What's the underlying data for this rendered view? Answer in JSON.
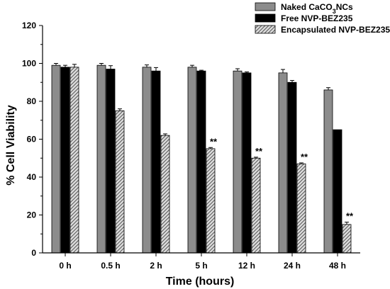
{
  "chart_data": {
    "type": "bar",
    "categories": [
      "0 h",
      "0.5 h",
      "2 h",
      "5 h",
      "12 h",
      "24 h",
      "48 h"
    ],
    "series": [
      {
        "name": "Naked CaCO3NCs",
        "values": [
          99,
          99,
          98,
          98,
          96,
          95,
          86
        ],
        "errors": [
          1,
          1,
          1.2,
          1,
          1.2,
          1.8,
          1.2
        ],
        "color": "#8c8c8c",
        "pattern": "solid"
      },
      {
        "name": "Free NVP-BEZ235",
        "values": [
          98,
          97,
          96,
          96,
          95,
          90,
          65
        ],
        "errors": [
          1,
          1.8,
          1.8,
          0.4,
          0.5,
          1,
          0
        ],
        "color": "#000000",
        "pattern": "solid"
      },
      {
        "name": "Encapsulated NVP-BEZ235",
        "values": [
          98,
          75,
          62,
          55,
          50,
          47,
          15
        ],
        "errors": [
          1.5,
          1,
          0.8,
          0.6,
          0.5,
          0.5,
          1.2
        ],
        "color": "#c8c8c8",
        "pattern": "hatch"
      }
    ],
    "annotations": [
      {
        "category": "5 h",
        "series": "Encapsulated NVP-BEZ235",
        "text": "**"
      },
      {
        "category": "12 h",
        "series": "Encapsulated NVP-BEZ235",
        "text": "**"
      },
      {
        "category": "24 h",
        "series": "Encapsulated NVP-BEZ235",
        "text": "**"
      },
      {
        "category": "48 h",
        "series": "Encapsulated NVP-BEZ235",
        "text": "**"
      }
    ],
    "xlabel": "Time (hours)",
    "ylabel": "% Cell Viability",
    "ylim": [
      0,
      120
    ],
    "yticks": [
      0,
      20,
      40,
      60,
      80,
      100,
      120
    ],
    "grid": false,
    "legend_position": "top-right"
  }
}
